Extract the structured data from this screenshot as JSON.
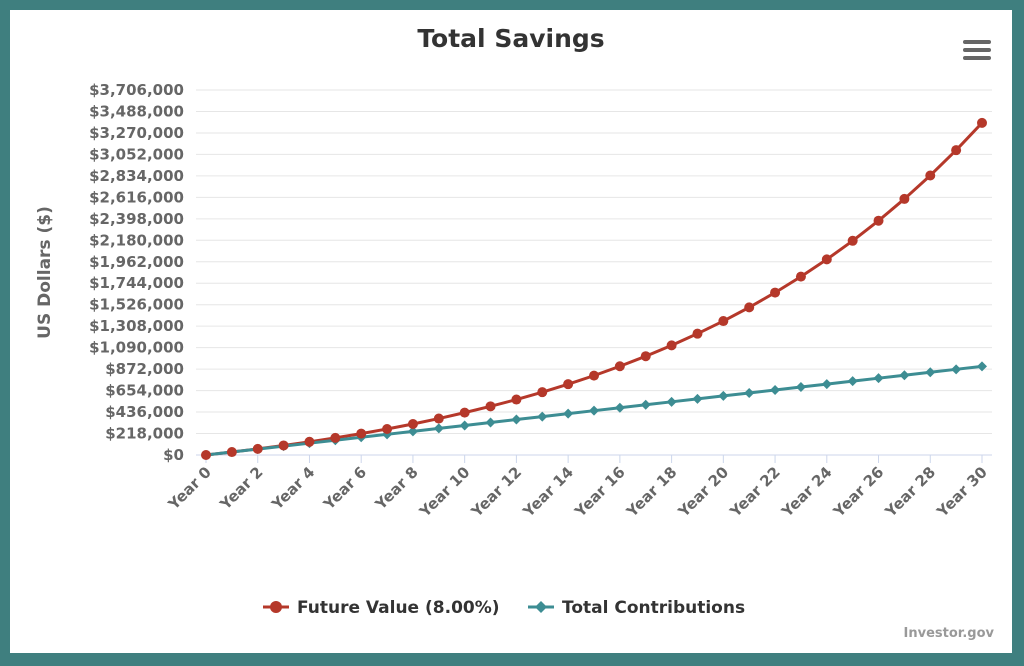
{
  "chart_data": {
    "type": "line",
    "title": "Total Savings",
    "xlabel": "",
    "ylabel": "US Dollars ($)",
    "ylim": [
      0,
      3706000
    ],
    "y_ticks": [
      "$0",
      "$218,000",
      "$436,000",
      "$654,000",
      "$872,000",
      "$1,090,000",
      "$1,308,000",
      "$1,526,000",
      "$1,744,000",
      "$1,962,000",
      "$2,180,000",
      "$2,398,000",
      "$2,616,000",
      "$2,834,000",
      "$3,052,000",
      "$3,270,000",
      "$3,488,000",
      "$3,706,000"
    ],
    "x": [
      "Year 0",
      "Year 1",
      "Year 2",
      "Year 3",
      "Year 4",
      "Year 5",
      "Year 6",
      "Year 7",
      "Year 8",
      "Year 9",
      "Year 10",
      "Year 11",
      "Year 12",
      "Year 13",
      "Year 14",
      "Year 15",
      "Year 16",
      "Year 17",
      "Year 18",
      "Year 19",
      "Year 20",
      "Year 21",
      "Year 22",
      "Year 23",
      "Year 24",
      "Year 25",
      "Year 26",
      "Year 27",
      "Year 28",
      "Year 29",
      "Year 30"
    ],
    "x_tick_labels": [
      "Year 0",
      "Year 2",
      "Year 4",
      "Year 6",
      "Year 8",
      "Year 10",
      "Year 12",
      "Year 14",
      "Year 16",
      "Year 18",
      "Year 20",
      "Year 22",
      "Year 24",
      "Year 26",
      "Year 28",
      "Year 30"
    ],
    "legend_position": "bottom-center",
    "grid": true,
    "series": [
      {
        "name": "Future Value (8.00%)",
        "color": "#b5382a",
        "marker": "circle",
        "values": [
          0,
          30000,
          62000,
          97000,
          134000,
          174000,
          217000,
          264000,
          315000,
          370000,
          430000,
          494000,
          563000,
          638000,
          719000,
          806000,
          901000,
          1003000,
          1113000,
          1232000,
          1360000,
          1499000,
          1649000,
          1811000,
          1986000,
          2175000,
          2379000,
          2600000,
          2838000,
          3095000,
          3372000
        ]
      },
      {
        "name": "Total Contributions",
        "color": "#3d8d93",
        "marker": "diamond",
        "values": [
          0,
          30000,
          60000,
          90000,
          120000,
          150000,
          180000,
          210000,
          240000,
          270000,
          300000,
          330000,
          360000,
          390000,
          420000,
          450000,
          480000,
          510000,
          540000,
          570000,
          600000,
          630000,
          660000,
          690000,
          720000,
          750000,
          780000,
          810000,
          840000,
          870000,
          900000
        ]
      }
    ]
  },
  "credits": "Investor.gov",
  "menu_icon": "hamburger-menu-icon"
}
